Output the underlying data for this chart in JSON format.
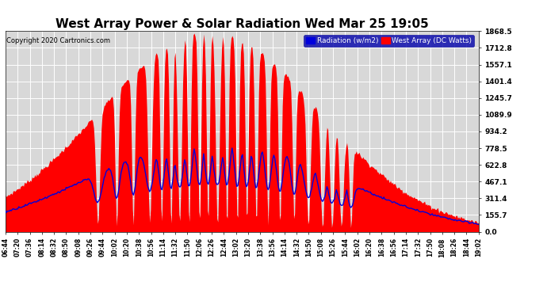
{
  "title": "West Array Power & Solar Radiation Wed Mar 25 19:05",
  "copyright": "Copyright 2020 Cartronics.com",
  "legend_radiation": "Radiation (w/m2)",
  "legend_west": "West Array (DC Watts)",
  "yticks": [
    0.0,
    155.7,
    311.4,
    467.1,
    622.8,
    778.5,
    934.2,
    1089.9,
    1245.7,
    1401.4,
    1557.1,
    1712.8,
    1868.5
  ],
  "ymax": 1868.5,
  "ymin": 0.0,
  "background_color": "#ffffff",
  "plot_bg": "#d8d8d8",
  "grid_color": "#ffffff",
  "red_color": "#ff0000",
  "blue_color": "#0000dd",
  "title_fontsize": 11,
  "xtick_labels": [
    "06:44",
    "07:20",
    "07:36",
    "08:14",
    "08:32",
    "08:50",
    "09:08",
    "09:26",
    "09:44",
    "10:02",
    "10:20",
    "10:38",
    "10:56",
    "11:14",
    "11:32",
    "11:50",
    "12:06",
    "12:26",
    "12:44",
    "13:02",
    "13:20",
    "13:38",
    "13:56",
    "14:14",
    "14:32",
    "14:50",
    "15:08",
    "15:26",
    "15:44",
    "16:02",
    "16:20",
    "16:38",
    "16:56",
    "17:14",
    "17:32",
    "17:50",
    "18:08",
    "18:26",
    "18:44",
    "19:02"
  ]
}
